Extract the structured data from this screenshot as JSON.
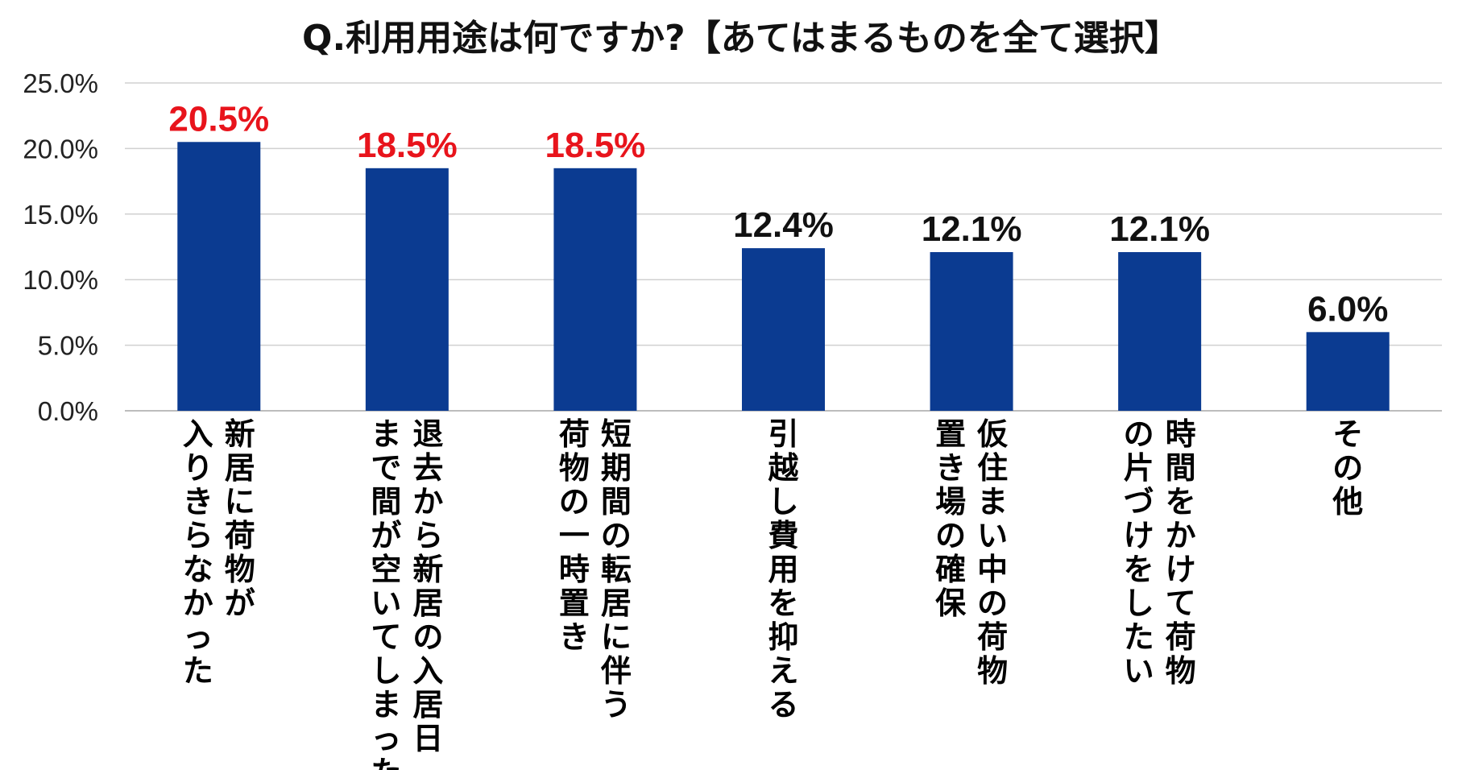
{
  "chart_data": {
    "type": "bar",
    "title": "Q.利用用途は何ですか?【あてはまるものを全て選択】",
    "xlabel": "",
    "ylabel": "",
    "ylim": [
      0,
      25
    ],
    "y_ticks": [
      "0.0%",
      "5.0%",
      "10.0%",
      "15.0%",
      "20.0%",
      "25.0%"
    ],
    "y_tick_values": [
      0,
      5,
      10,
      15,
      20,
      25
    ],
    "grid": true,
    "legend": "none",
    "bar_color": "#0b3b91",
    "highlight_label_color": "#e8141c",
    "default_label_color": "#111111",
    "categories": [
      {
        "lines": [
          "新居に荷物が",
          "入りきらなかった"
        ]
      },
      {
        "lines": [
          "退去から新居の入居日",
          "まで間が空いてしまった"
        ]
      },
      {
        "lines": [
          "短期間の転居に伴う",
          "荷物の一時置き"
        ]
      },
      {
        "lines": [
          "引越し費用を抑える"
        ]
      },
      {
        "lines": [
          "仮住まい中の荷物",
          "置き場の確保"
        ]
      },
      {
        "lines": [
          "時間をかけて荷物",
          "の片づけをしたい"
        ]
      },
      {
        "lines": [
          "その他"
        ]
      }
    ],
    "values": [
      20.5,
      18.5,
      18.5,
      12.4,
      12.1,
      12.1,
      6.0
    ],
    "value_labels": [
      "20.5%",
      "18.5%",
      "18.5%",
      "12.4%",
      "12.1%",
      "12.1%",
      "6.0%"
    ],
    "highlighted": [
      true,
      true,
      true,
      false,
      false,
      false,
      false
    ]
  }
}
